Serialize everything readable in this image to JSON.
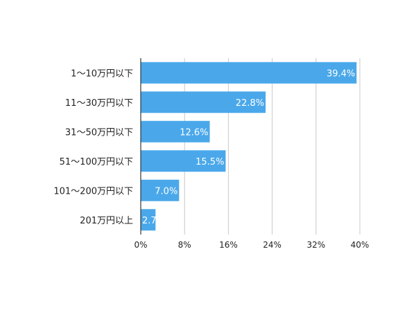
{
  "chart_data": {
    "type": "bar",
    "orientation": "horizontal",
    "categories": [
      "1〜10万円以下",
      "11〜30万円以下",
      "31〜50万円以下",
      "51〜100万円以下",
      "101〜200万円以下",
      "201万円以上"
    ],
    "values": [
      39.4,
      22.8,
      12.6,
      15.5,
      7.0,
      2.7
    ],
    "data_labels": [
      "39.4%",
      "22.8%",
      "12.6%",
      "15.5%",
      "7.0%",
      "2.7%"
    ],
    "xlim": [
      0,
      40
    ],
    "x_ticks": [
      0,
      8,
      16,
      24,
      32,
      40
    ],
    "x_tick_labels": [
      "0%",
      "8%",
      "16%",
      "24%",
      "32%",
      "40%"
    ],
    "grid": true,
    "bar_color": "#4aa8ea",
    "label_color": "#ffffff"
  }
}
